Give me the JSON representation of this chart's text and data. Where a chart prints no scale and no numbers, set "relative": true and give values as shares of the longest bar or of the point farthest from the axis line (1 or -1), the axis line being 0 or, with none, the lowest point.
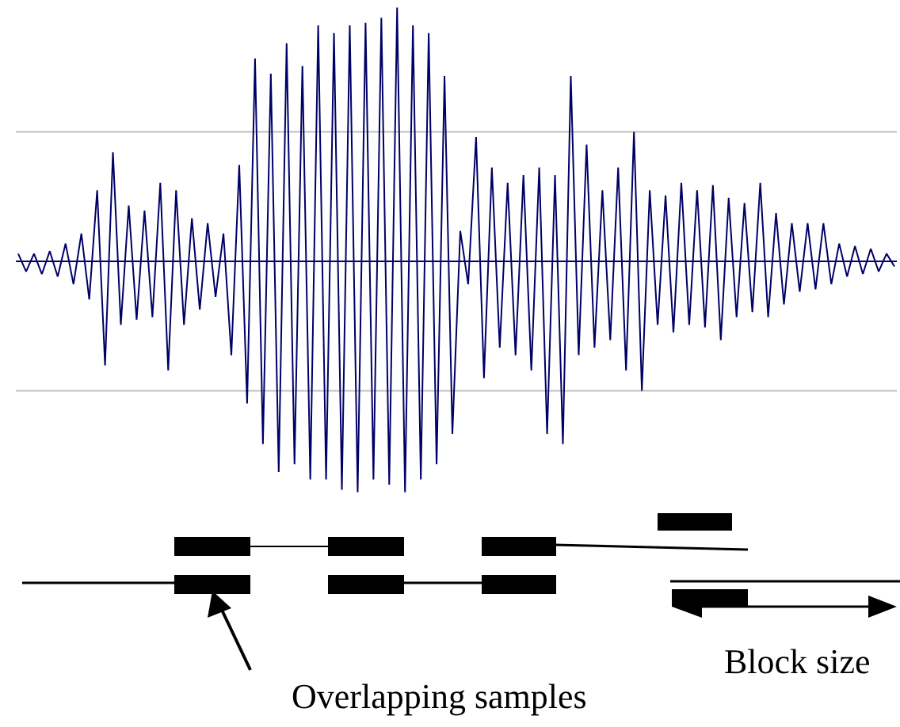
{
  "chart_data": {
    "type": "line",
    "relative": true,
    "grid": false,
    "marker": "none",
    "categories": [
      null,
      null,
      null,
      null,
      null,
      null,
      null,
      null,
      null,
      null,
      null,
      null,
      null,
      null,
      null,
      null,
      null,
      null,
      null,
      null,
      null,
      null,
      null,
      null,
      null,
      null,
      null,
      null,
      null,
      null,
      null,
      null,
      null,
      null,
      null,
      null,
      null,
      null,
      null,
      null,
      null,
      null,
      null,
      null,
      null,
      null,
      null,
      null,
      null,
      null,
      null,
      null,
      null,
      null,
      null,
      null,
      null,
      null,
      null,
      null,
      null,
      null,
      null,
      null,
      null,
      null,
      null,
      null,
      null,
      null,
      null,
      null,
      null,
      null,
      null,
      null,
      null,
      null,
      null,
      null,
      null,
      null,
      null,
      null,
      null,
      null,
      null,
      null,
      null,
      null,
      null,
      null,
      null,
      null,
      null,
      null,
      null,
      null,
      null,
      null,
      null,
      null,
      null,
      null,
      null,
      null,
      null,
      null,
      null,
      null,
      null,
      null
    ],
    "series": [
      {
        "color": "#000066",
        "values": [
          0.03,
          -0.04,
          0.03,
          -0.05,
          0.04,
          -0.06,
          0.07,
          -0.09,
          0.11,
          -0.15,
          0.28,
          -0.41,
          0.43,
          -0.25,
          0.22,
          -0.23,
          0.2,
          -0.22,
          0.31,
          -0.43,
          0.28,
          -0.25,
          0.17,
          -0.19,
          0.15,
          -0.14,
          0.11,
          -0.37,
          0.38,
          -0.56,
          0.8,
          -0.72,
          0.74,
          -0.83,
          0.86,
          -0.8,
          0.77,
          -0.86,
          0.93,
          -0.86,
          0.9,
          -0.9,
          0.93,
          -0.91,
          0.94,
          -0.86,
          0.96,
          -0.88,
          1,
          -0.91,
          0.93,
          -0.86,
          0.9,
          -0.8,
          0.73,
          -0.68,
          0.12,
          -0.09,
          0.49,
          -0.46,
          0.37,
          -0.34,
          0.31,
          -0.37,
          0.34,
          -0.43,
          0.37,
          -0.68,
          0.34,
          -0.72,
          0.73,
          -0.37,
          0.46,
          -0.34,
          0.28,
          -0.31,
          0.37,
          -0.43,
          0.51,
          -0.51,
          0.28,
          -0.25,
          0.26,
          -0.28,
          0.31,
          -0.25,
          0.28,
          -0.26,
          0.3,
          -0.31,
          0.25,
          -0.22,
          0.23,
          -0.2,
          0.31,
          -0.22,
          0.19,
          -0.17,
          0.15,
          -0.12,
          0.15,
          -0.11,
          0.15,
          -0.09,
          0.07,
          -0.06,
          0.06,
          -0.05,
          0.05,
          -0.04,
          0.03,
          -0.02
        ]
      }
    ],
    "ref_lines": [
      {
        "axis": "y",
        "value": 0.51,
        "color": "#c0c0c0"
      },
      {
        "axis": "y",
        "value": -0.51,
        "color": "#c0c0c0"
      },
      {
        "axis": "y",
        "value": 0,
        "color": "#000066"
      }
    ],
    "annotations": [
      "Overlapping samples",
      "Block size"
    ]
  }
}
